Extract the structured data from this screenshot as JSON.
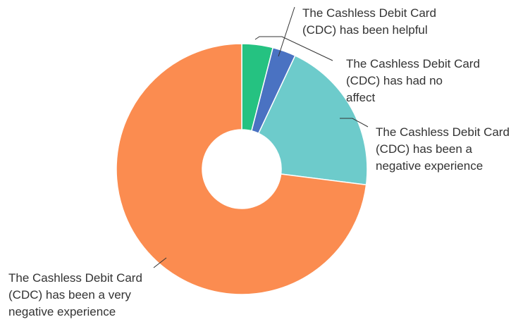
{
  "chart_data": {
    "type": "pie",
    "donut": true,
    "title": "",
    "legend": "none",
    "slices": [
      {
        "label": "The Cashless Debit Card (CDC) has been helpful",
        "value": 4,
        "color": "#25C281"
      },
      {
        "label": "The Cashless Debit Card (CDC) has had no affect",
        "value": 3,
        "color": "#4A72C2"
      },
      {
        "label": "The Cashless Debit Card (CDC) has been a negative experience",
        "value": 20,
        "color": "#6DCBCB"
      },
      {
        "label": "The Cashless Debit Card (CDC) has been a very negative experience",
        "value": 73,
        "color": "#FB8C50"
      }
    ],
    "callout_lines": [
      [
        "The Cashless Debit Card",
        "(CDC) has been helpful"
      ],
      [
        "The Cashless Debit Card",
        "(CDC) has had no",
        "affect"
      ],
      [
        "The Cashless Debit Card",
        "(CDC) has been a",
        "negative experience"
      ],
      [
        "The Cashless Debit Card",
        "(CDC) has been a very",
        "negative experience"
      ]
    ]
  }
}
